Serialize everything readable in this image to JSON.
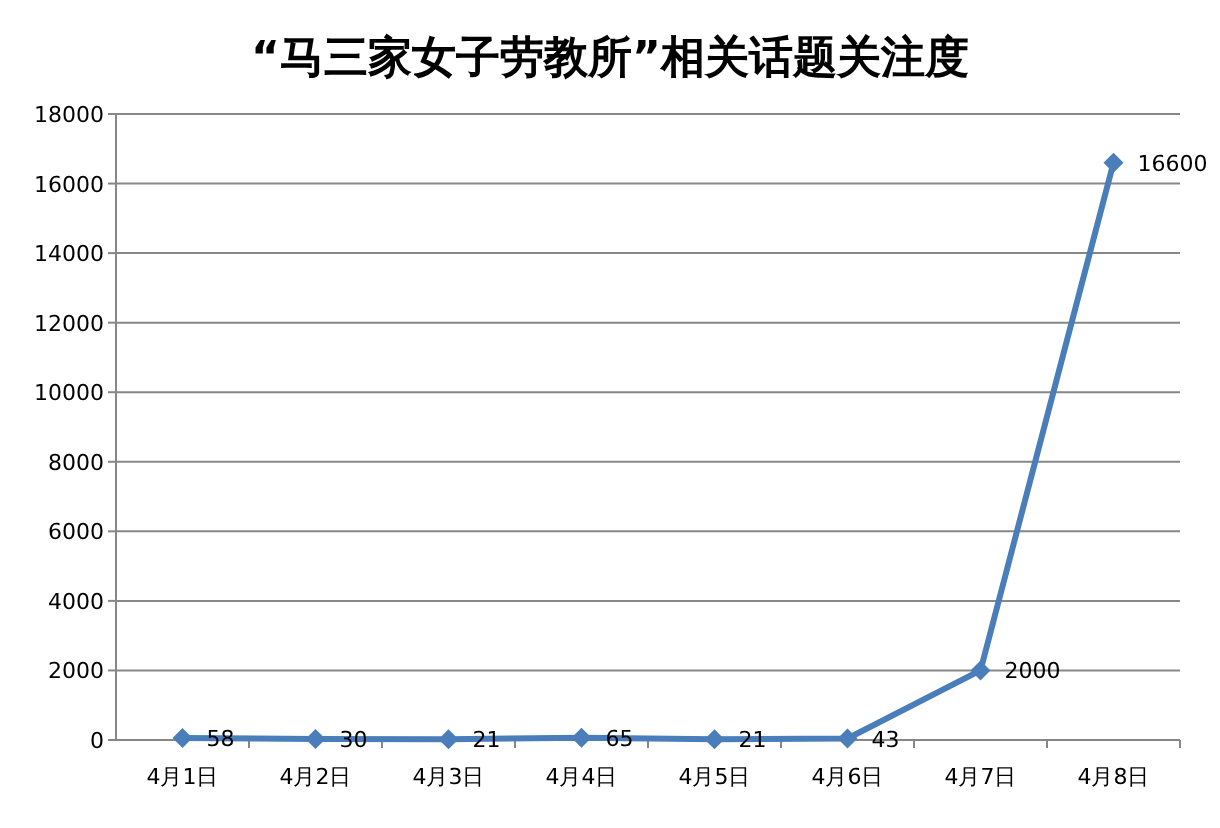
{
  "chart_data": {
    "type": "line",
    "title": "“马三家女子劳教所”相关话题关注度",
    "categories": [
      "4月1日",
      "4月2日",
      "4月3日",
      "4月4日",
      "4月5日",
      "4月6日",
      "4月7日",
      "4月8日"
    ],
    "series": [
      {
        "color": "#4a7ebb",
        "values": [
          58,
          30,
          21,
          65,
          21,
          43,
          2000,
          16600
        ]
      }
    ],
    "ylim": [
      0,
      18000
    ],
    "yticks": [
      0,
      2000,
      4000,
      6000,
      8000,
      10000,
      12000,
      14000,
      16000,
      18000
    ],
    "grid": "y",
    "marker": "diamond",
    "line_style": "solid",
    "data_labels": true
  }
}
